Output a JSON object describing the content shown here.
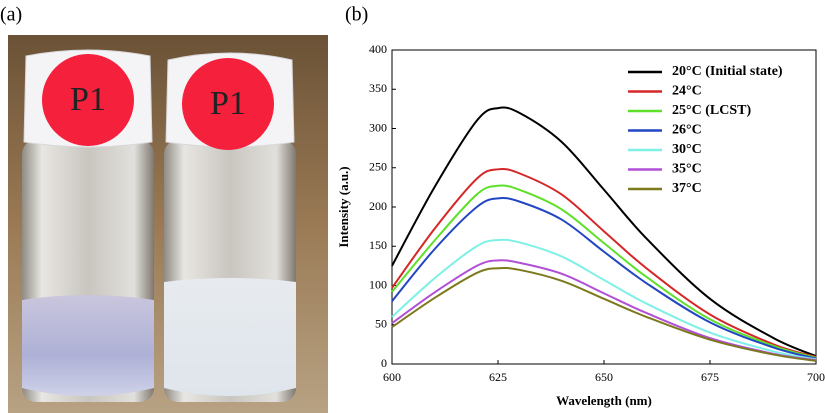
{
  "panel_labels": [
    "(a)",
    "(b)"
  ],
  "photo": {
    "cap_labels": [
      "P1",
      "P1"
    ]
  },
  "chart_data": {
    "type": "line",
    "x_label": "Wavelength (nm)",
    "y_label": "Intensity (a.u.)",
    "x": [
      600,
      610,
      620,
      625,
      630,
      640,
      650,
      660,
      675,
      690,
      700
    ],
    "series": [
      {
        "name": "20°C (Initial state)",
        "color": "#000000",
        "values": [
          125,
          225,
          310,
          326,
          320,
          283,
          222,
          160,
          83,
          33,
          10
        ]
      },
      {
        "name": "24°C",
        "color": "#d62728",
        "values": [
          97,
          172,
          236,
          248,
          243,
          216,
          169,
          122,
          63,
          25,
          9
        ]
      },
      {
        "name": "25°C (LCST)",
        "color": "#5ee02a",
        "values": [
          92,
          157,
          216,
          227,
          222,
          197,
          154,
          111,
          57,
          23,
          8
        ]
      },
      {
        "name": "26°C",
        "color": "#2346c2",
        "values": [
          80,
          146,
          200,
          211,
          207,
          184,
          143,
          103,
          53,
          21,
          7
        ]
      },
      {
        "name": "30°C",
        "color": "#7ff0e6",
        "values": [
          60,
          109,
          150,
          158,
          155,
          137,
          107,
          77,
          40,
          16,
          6
        ]
      },
      {
        "name": "35°C",
        "color": "#b14fd6",
        "values": [
          52,
          91,
          125,
          132,
          129,
          115,
          90,
          65,
          33,
          13,
          5
        ]
      },
      {
        "name": "37°C",
        "color": "#7d7a1e",
        "values": [
          47,
          84,
          116,
          122,
          120,
          106,
          83,
          60,
          31,
          12,
          4
        ]
      }
    ],
    "xlim": [
      600,
      700
    ],
    "xticks": [
      600,
      625,
      650,
      675,
      700
    ],
    "ylim": [
      0,
      400
    ],
    "yticks": [
      0,
      50,
      100,
      150,
      200,
      250,
      300,
      350,
      400
    ],
    "legend": "upper right"
  }
}
